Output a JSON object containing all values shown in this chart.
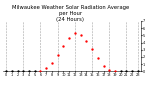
{
  "title": "Milwaukee Weather Solar Radiation Average\nper Hour\n(24 Hours)",
  "hours": [
    0,
    1,
    2,
    3,
    4,
    5,
    6,
    7,
    8,
    9,
    10,
    11,
    12,
    13,
    14,
    15,
    16,
    17,
    18,
    19,
    20,
    21,
    22,
    23
  ],
  "solar_radiation": [
    0,
    0,
    0,
    0,
    0,
    0,
    5,
    40,
    120,
    230,
    350,
    460,
    530,
    500,
    420,
    310,
    190,
    80,
    20,
    2,
    0,
    0,
    0,
    0
  ],
  "point_color_day": "#ff0000",
  "point_color_night": "#000000",
  "bg_color": "#ffffff",
  "grid_color": "#999999",
  "vgrid_positions": [
    0,
    3,
    6,
    9,
    12,
    15,
    18,
    21,
    23
  ],
  "ylim": [
    0,
    700
  ],
  "ytick_values": [
    0,
    100,
    200,
    300,
    400,
    500,
    600,
    700
  ],
  "ytick_labels": [
    "0",
    "1",
    "2",
    "3",
    "4",
    "5",
    "6",
    "7"
  ],
  "xticks": [
    0,
    1,
    2,
    3,
    4,
    5,
    6,
    7,
    8,
    9,
    10,
    11,
    12,
    13,
    14,
    15,
    16,
    17,
    18,
    19,
    20,
    21,
    22,
    23
  ],
  "xlim": [
    -0.5,
    23.5
  ],
  "title_fontsize": 3.8,
  "tick_fontsize": 2.5,
  "marker_size": 1.4
}
